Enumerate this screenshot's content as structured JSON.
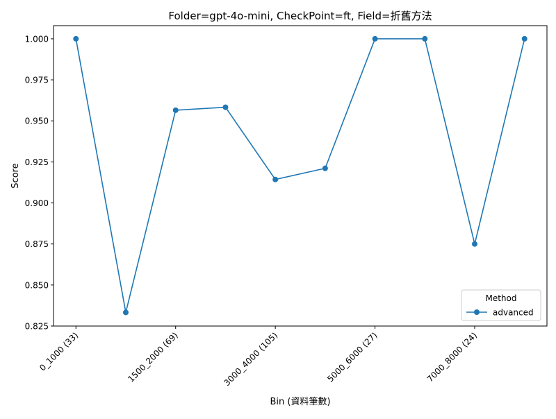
{
  "chart_data": {
    "type": "line",
    "title": "Folder=gpt-4o-mini, CheckPoint=ft, Field=折舊方法",
    "xlabel": "Bin (資料筆數)",
    "ylabel": "Score",
    "ylim": [
      0.825,
      1.008
    ],
    "yticks": [
      "0.825",
      "0.850",
      "0.875",
      "0.900",
      "0.925",
      "0.950",
      "0.975",
      "1.000"
    ],
    "x": [
      0,
      1,
      2,
      3,
      4,
      5,
      6,
      7,
      8,
      9
    ],
    "xtick_positions": [
      0,
      2,
      4,
      6,
      8
    ],
    "xtick_labels": [
      "0_1000 (33)",
      "1500_2000 (69)",
      "3000_4000 (105)",
      "5000_6000 (27)",
      "7000_8000 (24)"
    ],
    "series": [
      {
        "name": "advanced",
        "color": "#1f77b4",
        "values": [
          1.0,
          0.8333,
          0.9565,
          0.9583,
          0.9143,
          0.9211,
          1.0,
          1.0,
          0.875,
          1.0
        ]
      }
    ],
    "legend": {
      "title": "Method",
      "position": "bottom-right"
    },
    "grid": false
  }
}
